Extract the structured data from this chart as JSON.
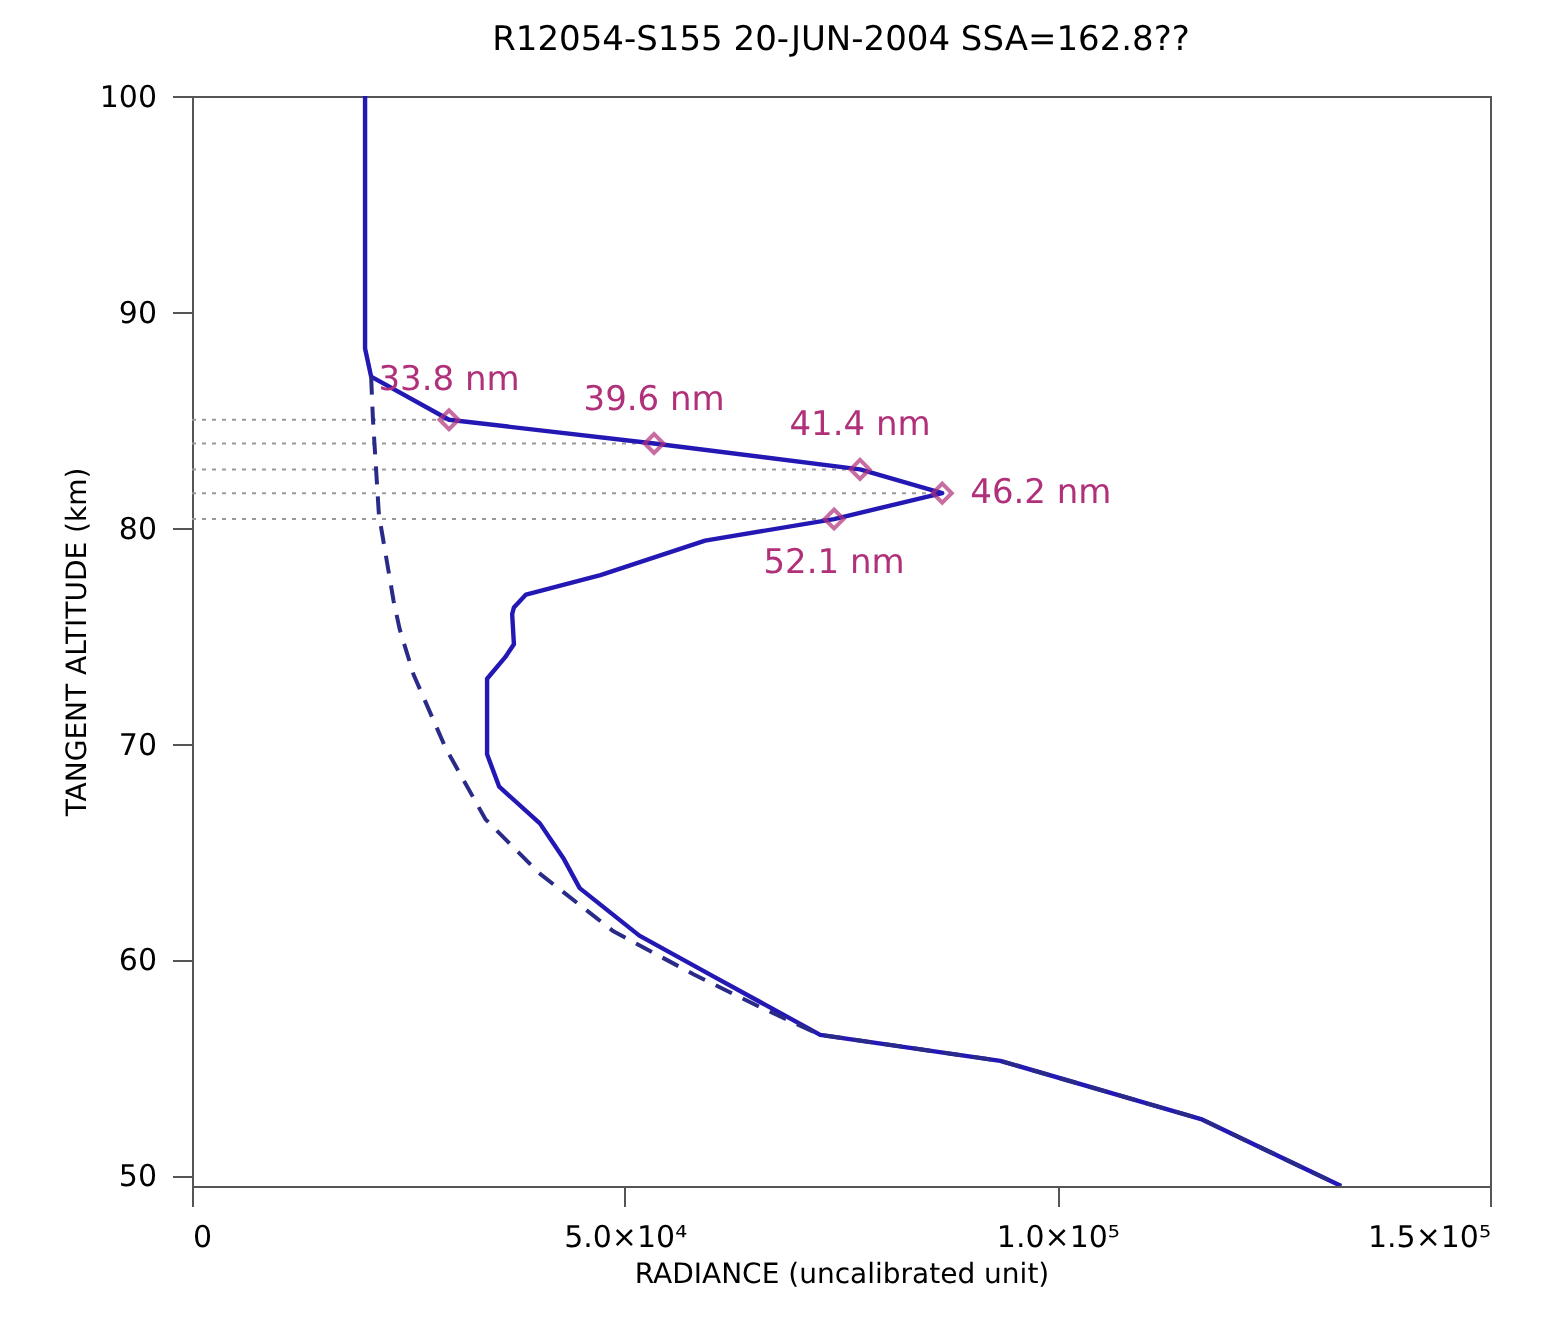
{
  "chart_data": {
    "type": "line",
    "title": "R12054-S155     20-JUN-2004     SSA=162.8??",
    "xlabel": "RADIANCE (uncalibrated unit)",
    "ylabel": "TANGENT ALTITUDE (km)",
    "xlim": [
      0,
      150000
    ],
    "ylim": [
      49.5,
      100
    ],
    "xticks": [
      0,
      {
        "value": 50000,
        "label": "5.0×10⁴"
      },
      {
        "value": 100000,
        "label": "1.0×10⁵"
      },
      {
        "value": 150000,
        "label": "1.5×10⁵"
      }
    ],
    "yticks": [
      50,
      60,
      70,
      80,
      90,
      100
    ],
    "grid": false,
    "annotations": [
      {
        "text": "33.8 nm",
        "x": 29700,
        "y": 85.0
      },
      {
        "text": "39.6 nm",
        "x": 53400,
        "y": 83.9
      },
      {
        "text": "41.4 nm",
        "x": 77200,
        "y": 82.7
      },
      {
        "text": "46.2 nm",
        "x": 86700,
        "y": 81.6
      },
      {
        "text": "52.1 nm",
        "x": 74200,
        "y": 80.4
      }
    ],
    "series": [
      {
        "color": "#2418b4",
        "line_style": "solid",
        "marker": "none",
        "x": [
          20000,
          20000,
          20700,
          29700,
          53400,
          77200,
          86700,
          74200,
          59300,
          47200,
          38600,
          37200,
          37000,
          37200,
          36200,
          34100,
          34100,
          35500,
          40200,
          42900,
          44800,
          51700,
          60300,
          72600,
          93400,
          116600,
          132800
        ],
        "values": [
          100,
          88.3,
          87.0,
          85.0,
          83.9,
          82.7,
          81.6,
          80.4,
          79.4,
          77.8,
          76.9,
          76.3,
          76.0,
          74.6,
          74.0,
          73.0,
          69.5,
          68.0,
          66.3,
          64.7,
          63.3,
          61.1,
          59.2,
          56.5,
          55.3,
          52.6,
          49.5
        ]
      },
      {
        "color": "#2a2a88",
        "line_style": "dashed",
        "marker": "none",
        "x": [
          20700,
          20900,
          21600,
          23300,
          24000,
          25600,
          29300,
          33900,
          40100,
          48700,
          58000,
          65600,
          72600,
          93400,
          116600,
          132800
        ],
        "values": [
          87.0,
          85.1,
          80.6,
          76.6,
          75.3,
          73.2,
          69.8,
          66.5,
          64.0,
          61.3,
          59.3,
          57.8,
          56.5,
          55.3,
          52.6,
          49.5
        ]
      },
      {
        "type": "scatter",
        "color": "#b0307a",
        "marker": "diamond",
        "x": [
          29700,
          53400,
          77200,
          86700,
          74200
        ],
        "values": [
          85.0,
          83.9,
          82.7,
          81.6,
          80.4
        ]
      }
    ],
    "ref_lines": [
      {
        "axis": "y",
        "value": 85.0,
        "line_style": "dotted",
        "color": "#999999"
      },
      {
        "axis": "y",
        "value": 83.9,
        "line_style": "dotted",
        "color": "#999999"
      },
      {
        "axis": "y",
        "value": 82.7,
        "line_style": "dotted",
        "color": "#999999"
      },
      {
        "axis": "y",
        "value": 81.6,
        "line_style": "dotted",
        "color": "#999999"
      },
      {
        "axis": "y",
        "value": 80.4,
        "line_style": "dotted",
        "color": "#999999"
      }
    ]
  }
}
